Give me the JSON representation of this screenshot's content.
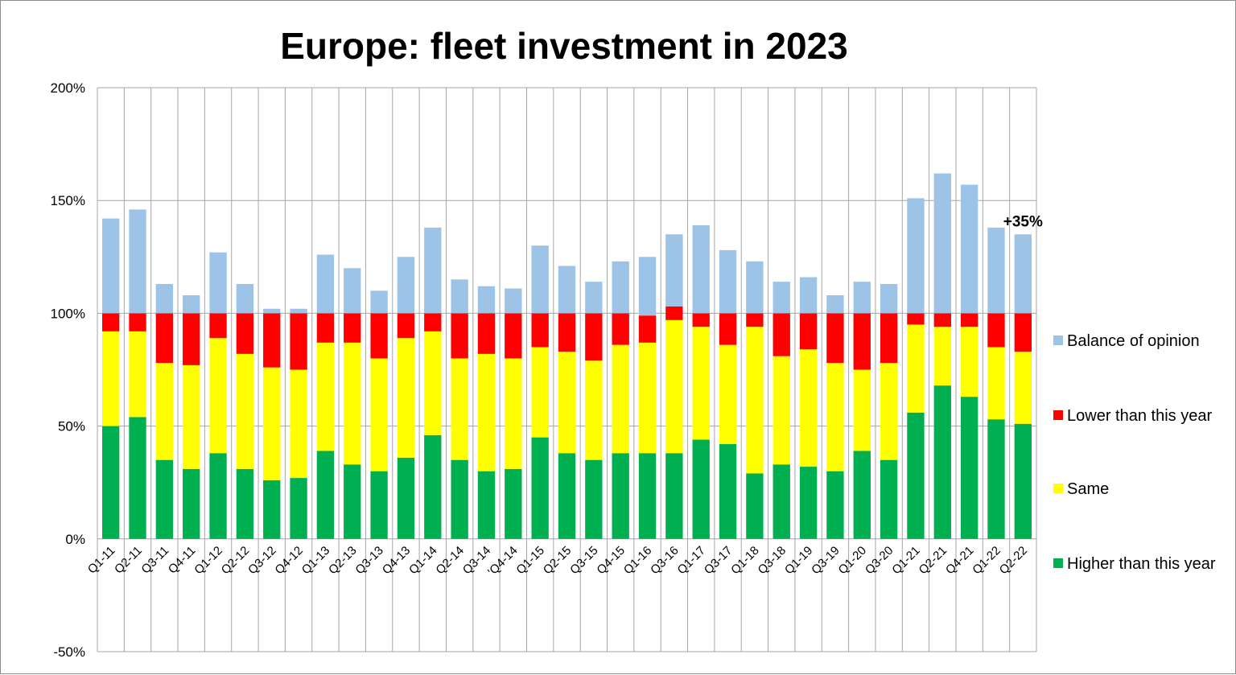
{
  "chart_data": {
    "type": "bar",
    "title": "Europe: fleet investment in 2023",
    "xlabel": "",
    "ylabel": "",
    "ylim": [
      -50,
      200
    ],
    "yticks": [
      -50,
      0,
      50,
      100,
      150,
      200
    ],
    "ytick_labels": [
      "-50%",
      "0%",
      "50%",
      "100%",
      "150%",
      "200%"
    ],
    "grid": true,
    "legend_position": "right",
    "categories": [
      "Q1-11",
      "Q2-11",
      "Q3-11",
      "Q4-11",
      "Q1-12",
      "Q2-12",
      "Q3-12",
      "Q4-12",
      "Q1-13",
      "Q2-13",
      "Q3-13",
      "Q4-13",
      "Q1-14",
      "Q2-14",
      "Q3-14",
      "'Q4-14",
      "Q1-15",
      "Q2-15",
      "Q3-15",
      "Q4-15",
      "Q1-16",
      "Q3-16",
      "Q1-17",
      "Q3-17",
      "Q1-18",
      "Q3-18",
      "Q1-19",
      "Q3-19",
      "Q1-20",
      "Q3-20",
      "Q1-21",
      "Q2-21",
      "Q4-21",
      "Q1-22",
      "Q2-22"
    ],
    "series": [
      {
        "name": "Higher than this year",
        "color": "#00b050",
        "values": [
          50,
          54,
          35,
          31,
          38,
          31,
          26,
          27,
          39,
          33,
          30,
          36,
          46,
          35,
          30,
          31,
          45,
          38,
          35,
          38,
          38,
          38,
          44,
          42,
          29,
          33,
          32,
          30,
          39,
          35,
          56,
          68,
          63,
          53,
          51
        ]
      },
      {
        "name": "Same",
        "color": "#ffff00",
        "values": [
          42,
          38,
          43,
          46,
          51,
          51,
          50,
          48,
          48,
          54,
          50,
          53,
          46,
          45,
          52,
          49,
          40,
          45,
          44,
          48,
          49,
          59,
          50,
          44,
          65,
          48,
          52,
          48,
          36,
          43,
          39,
          26,
          31,
          32,
          32
        ]
      },
      {
        "name": "Lower than this year",
        "color": "#ff0000",
        "values": [
          8,
          8,
          22,
          23,
          11,
          18,
          24,
          25,
          13,
          13,
          20,
          11,
          8,
          20,
          18,
          20,
          15,
          17,
          21,
          14,
          12,
          6,
          6,
          14,
          6,
          19,
          16,
          22,
          25,
          22,
          5,
          6,
          6,
          15,
          17
        ]
      },
      {
        "name": "Balance of opinion",
        "color": "#9dc3e6",
        "values": [
          42,
          46,
          13,
          8,
          27,
          13,
          2,
          2,
          26,
          20,
          10,
          25,
          38,
          15,
          12,
          11,
          30,
          21,
          14,
          23,
          26,
          32,
          39,
          28,
          23,
          14,
          16,
          8,
          14,
          13,
          51,
          62,
          57,
          38,
          35
        ]
      }
    ],
    "legend_order": [
      "Balance of opinion",
      "Lower than this year",
      "Same",
      "Higher than this year"
    ],
    "annotation": {
      "text": "+35%",
      "category": "Q2-22"
    }
  }
}
